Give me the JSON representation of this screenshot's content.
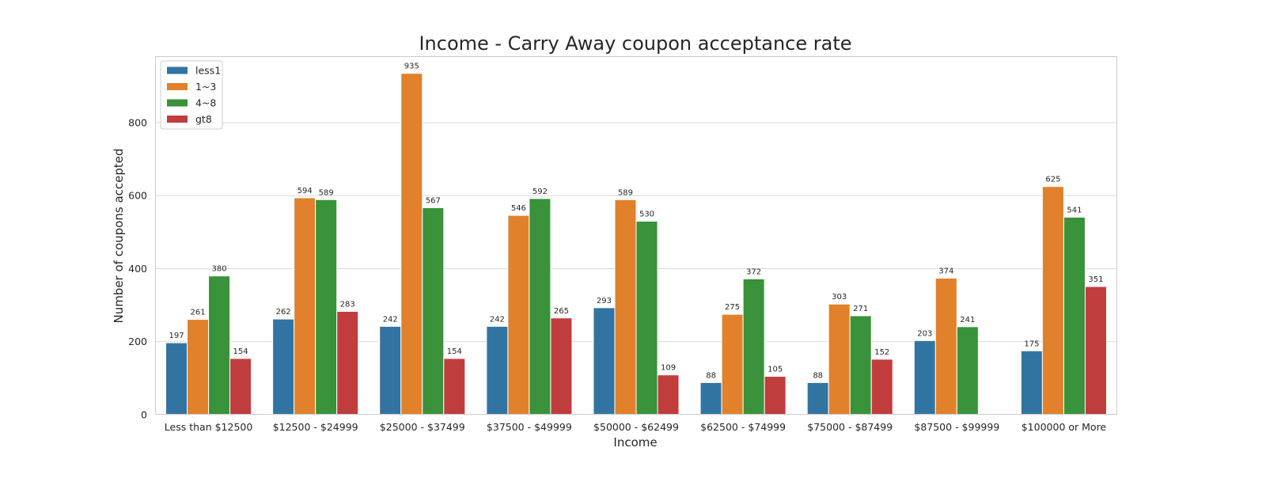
{
  "chart_data": {
    "type": "bar",
    "title": "Income - Carry Away coupon acceptance rate",
    "xlabel": "Income",
    "ylabel": "Number of coupons accepted",
    "categories": [
      "Less than $12500",
      "$12500 - $24999",
      "$25000 - $37499",
      "$37500 - $49999",
      "$50000 - $62499",
      "$62500 - $74999",
      "$75000 - $87499",
      "$87500 - $99999",
      "$100000 or More"
    ],
    "series": [
      {
        "name": "less1",
        "color": "#3274a1",
        "values": [
          197,
          262,
          242,
          242,
          293,
          88,
          88,
          203,
          175
        ]
      },
      {
        "name": "1~3",
        "color": "#e1812c",
        "values": [
          261,
          594,
          935,
          546,
          589,
          275,
          303,
          374,
          625
        ]
      },
      {
        "name": "4~8",
        "color": "#3a923a",
        "values": [
          380,
          589,
          567,
          592,
          530,
          372,
          271,
          241,
          541
        ]
      },
      {
        "name": "gt8",
        "color": "#c03d3e",
        "values": [
          154,
          283,
          154,
          265,
          109,
          105,
          152,
          null,
          351
        ]
      }
    ],
    "yticks": [
      0,
      200,
      400,
      600,
      800
    ],
    "ylim": [
      0,
      982
    ],
    "grid": true,
    "legend_position": "top-left"
  }
}
